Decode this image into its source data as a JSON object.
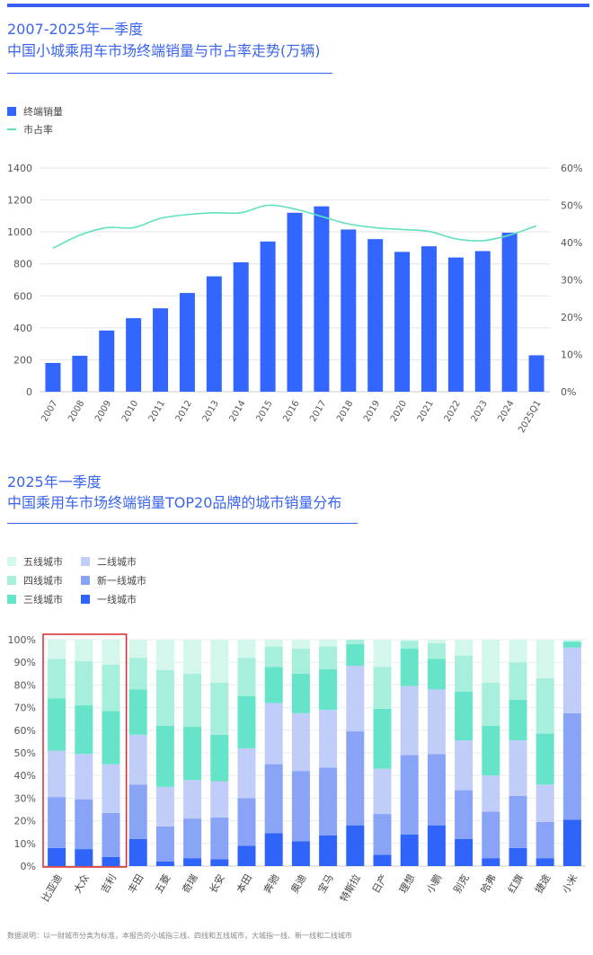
{
  "chart1": {
    "title_line1": "2007-2025年一季度",
    "title_line2": "中国小城乘用车市场终端销量与市占率走势(万辆)",
    "legend": {
      "bar": "终端销量",
      "line": "市占率"
    },
    "colors": {
      "bar": "#3366ff",
      "line": "#5fe0bf",
      "grid": "#e4e4e4"
    }
  },
  "chart2": {
    "title_line1": "2025年一季度",
    "title_line2": "中国乘用车市场终端销量TOP20品牌的城市销量分布",
    "legend": [
      "五线城市",
      "四线城市",
      "三线城市",
      "二线城市",
      "新一线城市",
      "一线城市"
    ],
    "colors": [
      "#d3f7ec",
      "#a6efdc",
      "#66e4c9",
      "#c0cdf9",
      "#89a4f7",
      "#2f64fb"
    ],
    "highlight_color": "#d9262b"
  },
  "chart_data": [
    {
      "type": "bar",
      "categories": [
        "2007",
        "2008",
        "2009",
        "2010",
        "2011",
        "2012",
        "2013",
        "2014",
        "2015",
        "2016",
        "2017",
        "2018",
        "2019",
        "2020",
        "2021",
        "2022",
        "2023",
        "2024",
        "2025Q1"
      ],
      "series": [
        {
          "name": "终端销量",
          "type": "bar",
          "axis": "left",
          "values": [
            180,
            225,
            383,
            460,
            522,
            618,
            722,
            810,
            940,
            1120,
            1160,
            1015,
            955,
            875,
            910,
            840,
            880,
            995,
            228
          ]
        },
        {
          "name": "市占率",
          "type": "line",
          "axis": "right",
          "values": [
            38.5,
            42,
            44,
            44,
            46.5,
            47.5,
            48,
            48,
            50,
            49,
            47,
            45,
            44,
            43.5,
            43,
            41,
            40.5,
            42,
            44.5
          ]
        }
      ],
      "yticks_left": [
        "0",
        "200",
        "400",
        "600",
        "800",
        "1000",
        "1200",
        "1400"
      ],
      "yticks_right": [
        "0%",
        "10%",
        "20%",
        "30%",
        "40%",
        "50%",
        "60%"
      ],
      "ylim_left": [
        0,
        1400
      ],
      "ylim_right": [
        0,
        60
      ],
      "grid": true
    },
    {
      "type": "bar",
      "stacked": true,
      "percent": true,
      "categories": [
        "比亚迪",
        "大众",
        "吉利",
        "丰田",
        "五菱",
        "奇瑞",
        "长安",
        "本田",
        "奔驰",
        "奥迪",
        "宝马",
        "特斯拉",
        "日产",
        "理想",
        "小鹏",
        "别克",
        "哈弗",
        "红旗",
        "捷途",
        "小米"
      ],
      "series": [
        {
          "name": "一线城市",
          "values": [
            8,
            7.5,
            4,
            12,
            2,
            3.5,
            3,
            9,
            14.5,
            11,
            13.5,
            18,
            5,
            14,
            18,
            12,
            3.5,
            8,
            3.5,
            20.5
          ]
        },
        {
          "name": "新一线城市",
          "values": [
            22.5,
            22,
            19.5,
            24,
            15.5,
            17.5,
            18.5,
            21,
            30.5,
            31,
            30,
            41.5,
            18,
            35,
            31.5,
            21.5,
            20.5,
            23,
            16,
            47
          ]
        },
        {
          "name": "二线城市",
          "values": [
            20.5,
            20,
            21.5,
            22,
            17.5,
            17,
            16,
            22,
            27,
            25.5,
            25.5,
            29,
            20,
            30.5,
            28.5,
            22,
            16,
            24.5,
            16.5,
            29
          ]
        },
        {
          "name": "三线城市",
          "values": [
            23,
            21.5,
            23.5,
            20,
            27,
            23.5,
            20.5,
            23,
            16,
            17.5,
            18,
            9.5,
            26.5,
            16.5,
            13.5,
            21.5,
            22,
            18,
            22.5,
            2.5
          ]
        },
        {
          "name": "四线城市",
          "values": [
            17.5,
            19.5,
            20.5,
            14,
            24.5,
            23.5,
            23,
            17,
            9,
            11,
            10,
            2,
            18.5,
            3.5,
            7,
            16,
            19,
            16.5,
            24.5,
            0.5
          ]
        },
        {
          "name": "五线城市",
          "values": [
            8.5,
            9.5,
            11,
            8,
            13.5,
            15,
            19,
            8,
            3,
            4,
            3,
            0,
            12,
            0.5,
            1.5,
            7,
            19,
            10,
            17,
            0.5
          ]
        }
      ],
      "yticks": [
        "0%",
        "10%",
        "20%",
        "30%",
        "40%",
        "50%",
        "60%",
        "70%",
        "80%",
        "90%",
        "100%"
      ],
      "ylim": [
        0,
        100
      ],
      "highlighted_categories": [
        "比亚迪",
        "大众",
        "吉利"
      ]
    }
  ],
  "footnote": "数据说明：以一财城市分类为标准，本报告的小城指三线、四线和五线城市，大城指一线、新一线和二线城市"
}
